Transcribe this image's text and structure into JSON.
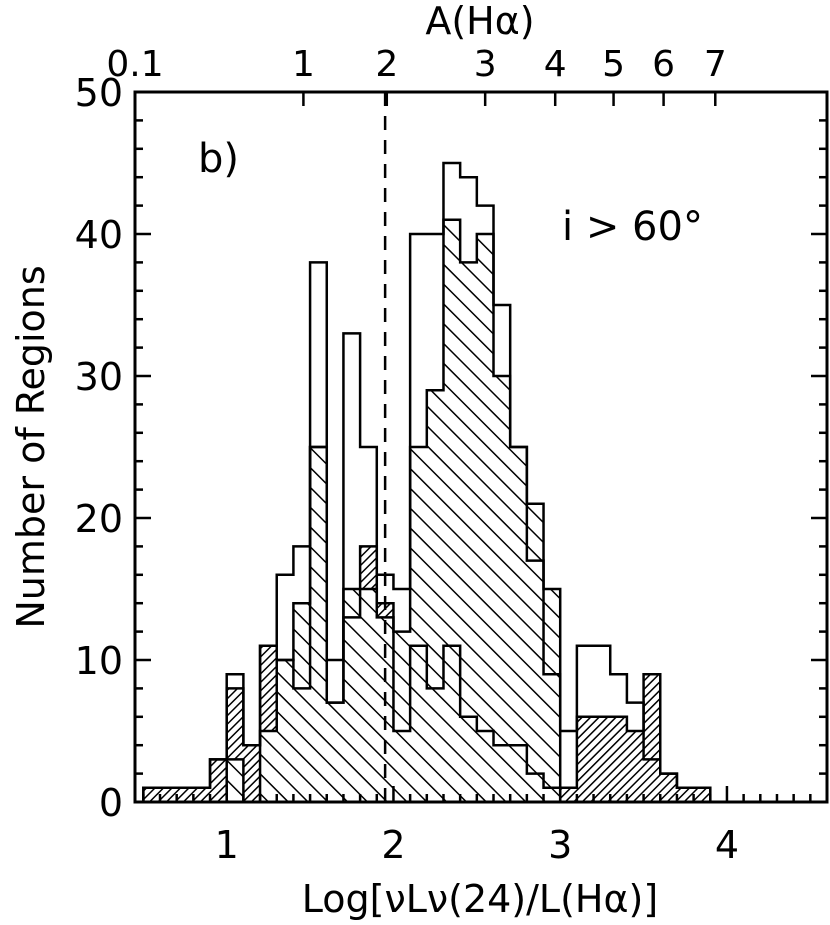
{
  "chart_data": {
    "type": "bar",
    "panel_label": "b)",
    "annotation": "i > 60°",
    "xlabel": "Log[νLν(24)/L(Hα)]",
    "ylabel": "Number of Regions",
    "top_axis_label": "A(Hα)",
    "xlim": [
      0.45,
      4.6
    ],
    "ylim": [
      0,
      50
    ],
    "grid": false,
    "x_ticks": [
      1,
      2,
      3,
      4
    ],
    "x_tick_labels": [
      "1",
      "2",
      "3",
      "4"
    ],
    "y_ticks": [
      0,
      10,
      20,
      30,
      40,
      50
    ],
    "y_tick_labels": [
      "0",
      "10",
      "20",
      "30",
      "40",
      "50"
    ],
    "top_ticks": [
      {
        "label": "0.1",
        "x": 0.45
      },
      {
        "label": "1",
        "x": 1.46
      },
      {
        "label": "2",
        "x": 1.96
      },
      {
        "label": "3",
        "x": 2.55
      },
      {
        "label": "4",
        "x": 2.97
      },
      {
        "label": "5",
        "x": 3.32
      },
      {
        "label": "6",
        "x": 3.62
      },
      {
        "label": "7",
        "x": 3.93
      }
    ],
    "reference_line_x": 1.95,
    "bin_width": 0.1,
    "bins_start": 0.5,
    "series": [
      {
        "style": "outline",
        "values": [
          1,
          1,
          1,
          1,
          3,
          9,
          4,
          11,
          16,
          18,
          38,
          10,
          33,
          25,
          16,
          15,
          40,
          40,
          45,
          44,
          42,
          35,
          25,
          17,
          9,
          5,
          11,
          11,
          9,
          7,
          3,
          2,
          1,
          1,
          0,
          0,
          0,
          0,
          0,
          0,
          0
        ]
      },
      {
        "style": "hatch-dense",
        "values": [
          1,
          1,
          1,
          1,
          3,
          8,
          4,
          11,
          10,
          8,
          25,
          7,
          13,
          18,
          14,
          5,
          11,
          8,
          11,
          6,
          5,
          4,
          4,
          2,
          1,
          1,
          6,
          6,
          6,
          5,
          9,
          2,
          1,
          1,
          0,
          0,
          0,
          0,
          0,
          0,
          0
        ]
      },
      {
        "style": "hatch-sparse",
        "values": [
          0,
          0,
          0,
          0,
          0,
          3,
          0,
          5,
          10,
          14,
          25,
          7,
          15,
          15,
          13,
          12,
          25,
          29,
          41,
          38,
          40,
          30,
          25,
          21,
          15,
          0,
          0,
          0,
          0,
          0,
          0,
          0,
          0,
          0,
          0,
          0,
          0,
          0,
          0,
          0,
          0
        ]
      }
    ]
  }
}
